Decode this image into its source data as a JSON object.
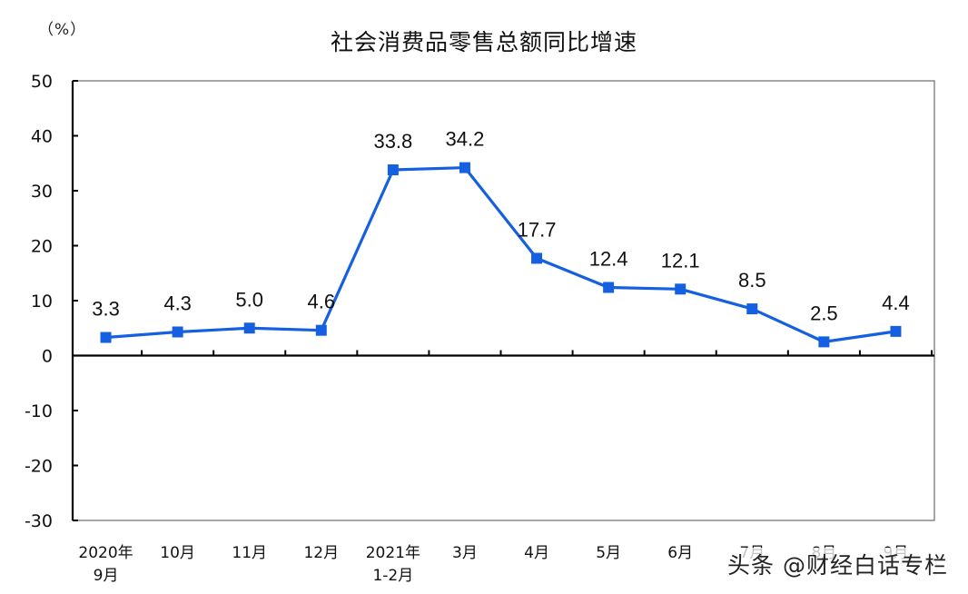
{
  "chart_data": {
    "type": "line",
    "title": "社会消费品零售总额同比增速",
    "ylabel": "（%）",
    "xlabel": "",
    "ylim": [
      -30,
      50
    ],
    "yticks": [
      50,
      40,
      30,
      20,
      10,
      0,
      -10,
      -20,
      -30
    ],
    "grid": false,
    "legend": null,
    "categories": [
      [
        "2020年",
        "9月"
      ],
      [
        "10月"
      ],
      [
        "11月"
      ],
      [
        "12月"
      ],
      [
        "2021年",
        "1-2月"
      ],
      [
        "3月"
      ],
      [
        "4月"
      ],
      [
        "5月"
      ],
      [
        "6月"
      ],
      [
        "7月"
      ],
      [
        "8月"
      ],
      [
        "9月"
      ]
    ],
    "series": [
      {
        "name": "社会消费品零售总额同比增速",
        "color": "#1560e0",
        "marker": "square",
        "values": [
          3.3,
          4.3,
          5.0,
          4.6,
          33.8,
          34.2,
          17.7,
          12.4,
          12.1,
          8.5,
          2.5,
          4.4
        ],
        "labels": [
          "3.3",
          "4.3",
          "5.0",
          "4.6",
          "33.8",
          "34.2",
          "17.7",
          "12.4",
          "12.1",
          "8.5",
          "2.5",
          "4.4"
        ]
      }
    ]
  },
  "watermark": "头条 @财经白话专栏"
}
